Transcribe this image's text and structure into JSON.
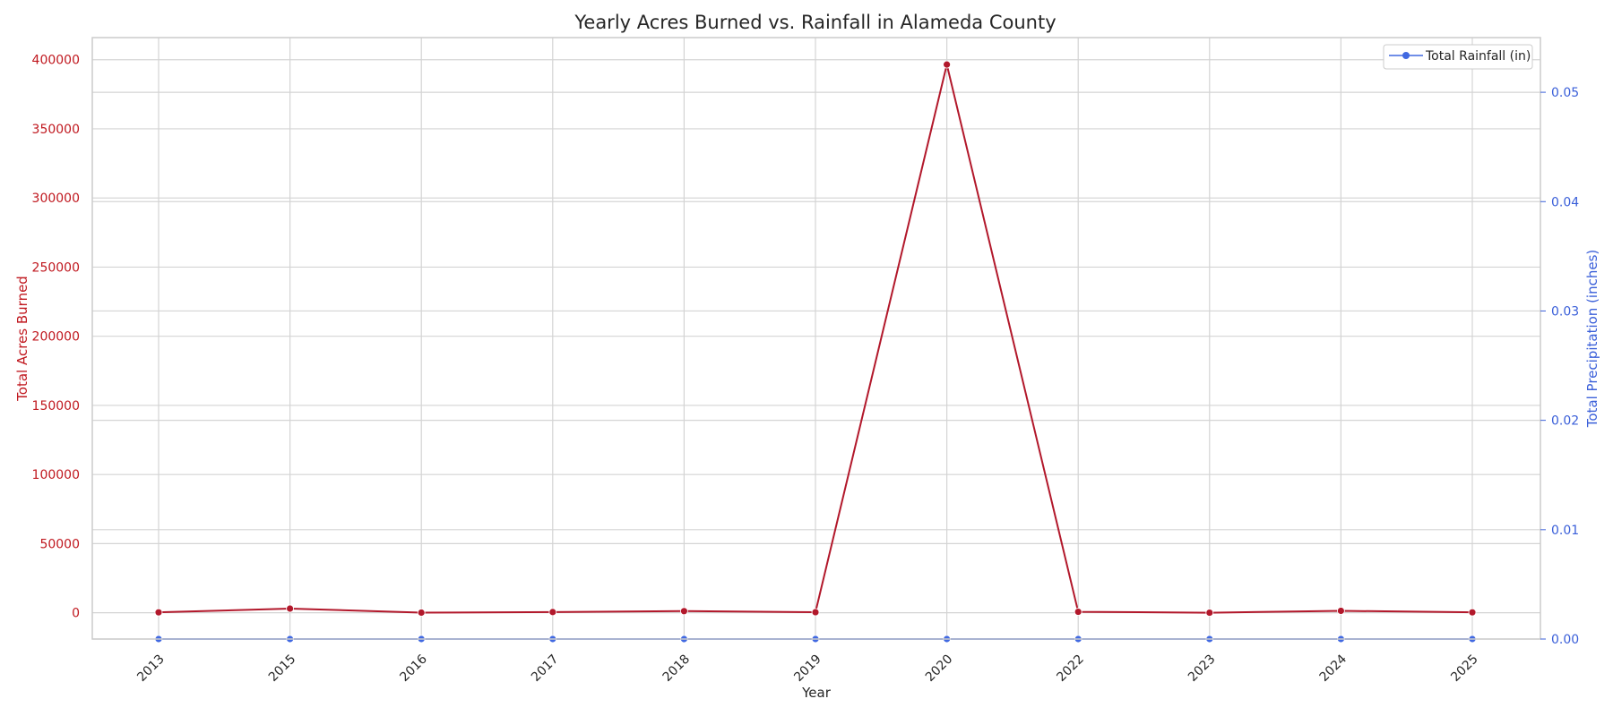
{
  "chart_data": {
    "type": "line",
    "title": "Yearly Acres Burned vs. Rainfall in Alameda County",
    "xlabel": "Year",
    "ylabel_left": "Total Acres Burned",
    "ylabel_right": "Total Precipitation (inches)",
    "categories": [
      "2013",
      "2015",
      "2016",
      "2017",
      "2018",
      "2019",
      "2020",
      "2022",
      "2023",
      "2024",
      "2025"
    ],
    "series": [
      {
        "axis": "left",
        "color": "#b2182b",
        "values": [
          300,
          3000,
          100,
          500,
          1200,
          400,
          396500,
          700,
          50,
          1400,
          300
        ]
      },
      {
        "name": "Total Rainfall (in)",
        "axis": "right",
        "color": "#4169e1",
        "values": [
          0,
          0,
          0,
          0,
          0,
          0,
          0,
          0,
          0,
          0,
          0
        ]
      }
    ],
    "ylim_left": [
      -19000,
      416000
    ],
    "ylim_right": [
      0,
      0.055
    ],
    "yticks_left": [
      0,
      50000,
      100000,
      150000,
      200000,
      250000,
      300000,
      350000,
      400000
    ],
    "yticks_right": [
      0.0,
      0.01,
      0.02,
      0.03,
      0.04,
      0.05
    ],
    "yticks_right_labels": [
      "0.00",
      "0.01",
      "0.02",
      "0.03",
      "0.04",
      "0.05"
    ],
    "grid": true,
    "legend_position": "top-right"
  }
}
